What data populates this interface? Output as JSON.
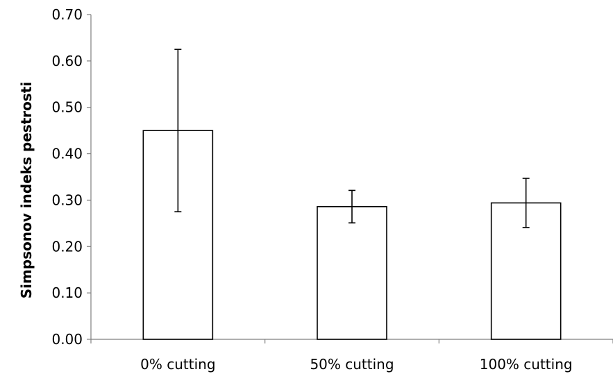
{
  "chart_data": {
    "type": "bar",
    "title": "",
    "xlabel": "",
    "ylabel": "Simpsonov indeks pestrosti",
    "categories": [
      "0% cutting",
      "50% cutting",
      "100% cutting"
    ],
    "values": [
      0.45,
      0.286,
      0.294
    ],
    "error_low": [
      0.275,
      0.251,
      0.241
    ],
    "error_high": [
      0.625,
      0.321,
      0.347
    ],
    "ylim": [
      0,
      0.7
    ],
    "yticks": [
      "0.00",
      "0.10",
      "0.20",
      "0.30",
      "0.40",
      "0.50",
      "0.60",
      "0.70"
    ],
    "ytick_values": [
      0,
      0.1,
      0.2,
      0.3,
      0.4,
      0.5,
      0.6,
      0.7
    ],
    "grid": false,
    "legend": "none",
    "bar_fill": "#ffffff",
    "bar_edge": "#000000",
    "axis_color": "#7f7f7f"
  }
}
